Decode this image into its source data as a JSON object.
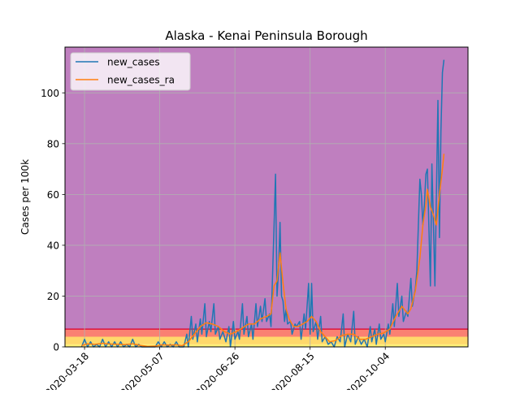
{
  "chart_data": {
    "type": "line",
    "title": "Alaska - Kenai Peninsula Borough",
    "xlabel": "",
    "ylabel": "Cases per 100k",
    "x_type": "date",
    "xlim": [
      "2020-03-05",
      "2020-11-28"
    ],
    "ylim": [
      0,
      118
    ],
    "grid": true,
    "legend_position": "top-left",
    "x_ticks": [
      "2020-03-18",
      "2020-05-07",
      "2020-06-26",
      "2020-08-15",
      "2020-10-04"
    ],
    "x_tick_labels": [
      "2020-03-18",
      "2020-05-07",
      "2020-06-26",
      "2020-08-15",
      "2020-10-04"
    ],
    "y_ticks": [
      0,
      20,
      40,
      60,
      80,
      100
    ],
    "y_tick_labels": [
      "0",
      "20",
      "40",
      "60",
      "80",
      "100"
    ],
    "bands": [
      {
        "y0": 0,
        "y1": 1,
        "color": "#fff176"
      },
      {
        "y0": 1,
        "y1": 4,
        "color": "#ffd86b"
      },
      {
        "y0": 4,
        "y1": 7,
        "color": "#fa8072"
      },
      {
        "y0": 7,
        "y1": 118,
        "color": "#bf7fbf"
      }
    ],
    "threshold_line": {
      "y": 7,
      "color": "#dc143c"
    },
    "series": [
      {
        "name": "new_cases",
        "color": "#1f77b4",
        "points": [
          [
            "2020-03-16",
            0
          ],
          [
            "2020-03-18",
            3
          ],
          [
            "2020-03-20",
            0
          ],
          [
            "2020-03-22",
            2
          ],
          [
            "2020-03-24",
            0
          ],
          [
            "2020-03-26",
            1
          ],
          [
            "2020-03-28",
            0
          ],
          [
            "2020-03-30",
            3
          ],
          [
            "2020-04-01",
            0
          ],
          [
            "2020-04-03",
            2
          ],
          [
            "2020-04-05",
            0
          ],
          [
            "2020-04-07",
            2
          ],
          [
            "2020-04-09",
            0
          ],
          [
            "2020-04-11",
            2
          ],
          [
            "2020-04-13",
            0
          ],
          [
            "2020-04-15",
            1
          ],
          [
            "2020-04-17",
            0
          ],
          [
            "2020-04-19",
            3
          ],
          [
            "2020-04-21",
            0
          ],
          [
            "2020-04-23",
            1
          ],
          [
            "2020-04-25",
            0
          ],
          [
            "2020-04-28",
            0
          ],
          [
            "2020-05-01",
            0
          ],
          [
            "2020-05-04",
            0
          ],
          [
            "2020-05-06",
            2
          ],
          [
            "2020-05-08",
            0
          ],
          [
            "2020-05-10",
            2
          ],
          [
            "2020-05-12",
            0
          ],
          [
            "2020-05-14",
            1
          ],
          [
            "2020-05-16",
            0
          ],
          [
            "2020-05-18",
            2
          ],
          [
            "2020-05-20",
            0
          ],
          [
            "2020-05-23",
            0
          ],
          [
            "2020-05-25",
            5
          ],
          [
            "2020-05-26",
            0
          ],
          [
            "2020-05-28",
            12
          ],
          [
            "2020-05-29",
            3
          ],
          [
            "2020-05-31",
            9
          ],
          [
            "2020-06-01",
            2
          ],
          [
            "2020-06-03",
            11
          ],
          [
            "2020-06-04",
            5
          ],
          [
            "2020-06-06",
            17
          ],
          [
            "2020-06-07",
            4
          ],
          [
            "2020-06-09",
            10
          ],
          [
            "2020-06-10",
            6
          ],
          [
            "2020-06-12",
            17
          ],
          [
            "2020-06-13",
            5
          ],
          [
            "2020-06-15",
            8
          ],
          [
            "2020-06-16",
            3
          ],
          [
            "2020-06-18",
            6
          ],
          [
            "2020-06-20",
            2
          ],
          [
            "2020-06-22",
            8
          ],
          [
            "2020-06-23",
            0
          ],
          [
            "2020-06-25",
            10
          ],
          [
            "2020-06-26",
            3
          ],
          [
            "2020-06-28",
            6
          ],
          [
            "2020-06-29",
            3
          ],
          [
            "2020-07-01",
            17
          ],
          [
            "2020-07-02",
            5
          ],
          [
            "2020-07-04",
            12
          ],
          [
            "2020-07-05",
            4
          ],
          [
            "2020-07-07",
            9
          ],
          [
            "2020-07-08",
            3
          ],
          [
            "2020-07-10",
            17
          ],
          [
            "2020-07-11",
            8
          ],
          [
            "2020-07-13",
            16
          ],
          [
            "2020-07-14",
            10
          ],
          [
            "2020-07-16",
            19
          ],
          [
            "2020-07-17",
            10
          ],
          [
            "2020-07-19",
            13
          ],
          [
            "2020-07-20",
            8
          ],
          [
            "2020-07-22",
            47
          ],
          [
            "2020-07-23",
            68
          ],
          [
            "2020-07-24",
            20
          ],
          [
            "2020-07-25",
            30
          ],
          [
            "2020-07-26",
            49
          ],
          [
            "2020-07-27",
            20
          ],
          [
            "2020-07-28",
            18
          ],
          [
            "2020-07-29",
            10
          ],
          [
            "2020-07-30",
            15
          ],
          [
            "2020-07-31",
            9
          ],
          [
            "2020-08-02",
            10
          ],
          [
            "2020-08-03",
            5
          ],
          [
            "2020-08-05",
            9
          ],
          [
            "2020-08-06",
            8
          ],
          [
            "2020-08-08",
            10
          ],
          [
            "2020-08-09",
            3
          ],
          [
            "2020-08-11",
            13
          ],
          [
            "2020-08-12",
            7
          ],
          [
            "2020-08-14",
            25
          ],
          [
            "2020-08-15",
            5
          ],
          [
            "2020-08-16",
            25
          ],
          [
            "2020-08-17",
            6
          ],
          [
            "2020-08-19",
            10
          ],
          [
            "2020-08-20",
            3
          ],
          [
            "2020-08-22",
            12
          ],
          [
            "2020-08-23",
            2
          ],
          [
            "2020-08-25",
            4
          ],
          [
            "2020-08-27",
            1
          ],
          [
            "2020-08-29",
            2
          ],
          [
            "2020-08-31",
            0
          ],
          [
            "2020-09-02",
            4
          ],
          [
            "2020-09-04",
            2
          ],
          [
            "2020-09-06",
            13
          ],
          [
            "2020-09-07",
            0
          ],
          [
            "2020-09-09",
            5
          ],
          [
            "2020-09-11",
            2
          ],
          [
            "2020-09-13",
            14
          ],
          [
            "2020-09-14",
            1
          ],
          [
            "2020-09-16",
            4
          ],
          [
            "2020-09-18",
            1
          ],
          [
            "2020-09-20",
            3
          ],
          [
            "2020-09-22",
            0
          ],
          [
            "2020-09-24",
            8
          ],
          [
            "2020-09-25",
            2
          ],
          [
            "2020-09-27",
            7
          ],
          [
            "2020-09-28",
            1
          ],
          [
            "2020-09-30",
            9
          ],
          [
            "2020-10-01",
            3
          ],
          [
            "2020-10-03",
            5
          ],
          [
            "2020-10-04",
            2
          ],
          [
            "2020-10-06",
            9
          ],
          [
            "2020-10-07",
            5
          ],
          [
            "2020-10-09",
            17
          ],
          [
            "2020-10-10",
            8
          ],
          [
            "2020-10-12",
            25
          ],
          [
            "2020-10-13",
            12
          ],
          [
            "2020-10-15",
            20
          ],
          [
            "2020-10-16",
            10
          ],
          [
            "2020-10-18",
            14
          ],
          [
            "2020-10-19",
            12
          ],
          [
            "2020-10-21",
            27
          ],
          [
            "2020-10-22",
            16
          ],
          [
            "2020-10-24",
            23
          ],
          [
            "2020-10-25",
            30
          ],
          [
            "2020-10-27",
            66
          ],
          [
            "2020-10-28",
            60
          ],
          [
            "2020-10-29",
            48
          ],
          [
            "2020-10-30",
            56
          ],
          [
            "2020-10-31",
            68
          ],
          [
            "2020-11-01",
            70
          ],
          [
            "2020-11-02",
            47
          ],
          [
            "2020-11-03",
            24
          ],
          [
            "2020-11-04",
            72
          ],
          [
            "2020-11-05",
            49
          ],
          [
            "2020-11-06",
            24
          ],
          [
            "2020-11-07",
            60
          ],
          [
            "2020-11-08",
            97
          ],
          [
            "2020-11-09",
            43
          ],
          [
            "2020-11-10",
            85
          ],
          [
            "2020-11-11",
            108
          ],
          [
            "2020-11-12",
            113
          ]
        ]
      },
      {
        "name": "new_cases_ra",
        "color": "#ff7f0e",
        "points": [
          [
            "2020-03-16",
            0.5
          ],
          [
            "2020-03-20",
            1.2
          ],
          [
            "2020-03-25",
            1.0
          ],
          [
            "2020-03-30",
            1.4
          ],
          [
            "2020-04-04",
            1.1
          ],
          [
            "2020-04-09",
            1.0
          ],
          [
            "2020-04-14",
            0.9
          ],
          [
            "2020-04-19",
            1.2
          ],
          [
            "2020-04-24",
            0.6
          ],
          [
            "2020-04-29",
            0.2
          ],
          [
            "2020-05-04",
            0.3
          ],
          [
            "2020-05-08",
            0.8
          ],
          [
            "2020-05-13",
            0.7
          ],
          [
            "2020-05-18",
            0.8
          ],
          [
            "2020-05-22",
            0.5
          ],
          [
            "2020-05-26",
            2
          ],
          [
            "2020-05-30",
            5
          ],
          [
            "2020-06-03",
            8
          ],
          [
            "2020-06-07",
            9.5
          ],
          [
            "2020-06-11",
            9
          ],
          [
            "2020-06-15",
            8
          ],
          [
            "2020-06-19",
            6
          ],
          [
            "2020-06-23",
            5
          ],
          [
            "2020-06-27",
            6
          ],
          [
            "2020-07-01",
            7.5
          ],
          [
            "2020-07-05",
            9
          ],
          [
            "2020-07-09",
            9
          ],
          [
            "2020-07-13",
            11
          ],
          [
            "2020-07-17",
            12
          ],
          [
            "2020-07-20",
            13
          ],
          [
            "2020-07-22",
            24
          ],
          [
            "2020-07-24",
            26
          ],
          [
            "2020-07-26",
            37
          ],
          [
            "2020-07-28",
            25
          ],
          [
            "2020-07-30",
            15
          ],
          [
            "2020-08-01",
            11
          ],
          [
            "2020-08-04",
            8
          ],
          [
            "2020-08-07",
            8
          ],
          [
            "2020-08-10",
            9
          ],
          [
            "2020-08-13",
            10
          ],
          [
            "2020-08-16",
            12
          ],
          [
            "2020-08-19",
            10
          ],
          [
            "2020-08-22",
            6
          ],
          [
            "2020-08-25",
            4
          ],
          [
            "2020-08-28",
            2
          ],
          [
            "2020-09-01",
            2.5
          ],
          [
            "2020-09-05",
            4.5
          ],
          [
            "2020-09-09",
            5
          ],
          [
            "2020-09-13",
            5
          ],
          [
            "2020-09-17",
            3
          ],
          [
            "2020-09-21",
            3
          ],
          [
            "2020-09-25",
            4
          ],
          [
            "2020-09-29",
            5
          ],
          [
            "2020-10-03",
            5.5
          ],
          [
            "2020-10-07",
            7
          ],
          [
            "2020-10-11",
            12
          ],
          [
            "2020-10-15",
            16
          ],
          [
            "2020-10-19",
            13
          ],
          [
            "2020-10-21",
            15
          ],
          [
            "2020-10-24",
            22
          ],
          [
            "2020-10-27",
            35
          ],
          [
            "2020-10-29",
            48
          ],
          [
            "2020-10-31",
            56
          ],
          [
            "2020-11-01",
            62
          ],
          [
            "2020-11-03",
            55
          ],
          [
            "2020-11-05",
            52
          ],
          [
            "2020-11-06",
            50
          ],
          [
            "2020-11-07",
            48
          ],
          [
            "2020-11-09",
            60
          ],
          [
            "2020-11-11",
            70
          ],
          [
            "2020-11-12",
            76
          ]
        ]
      }
    ]
  }
}
